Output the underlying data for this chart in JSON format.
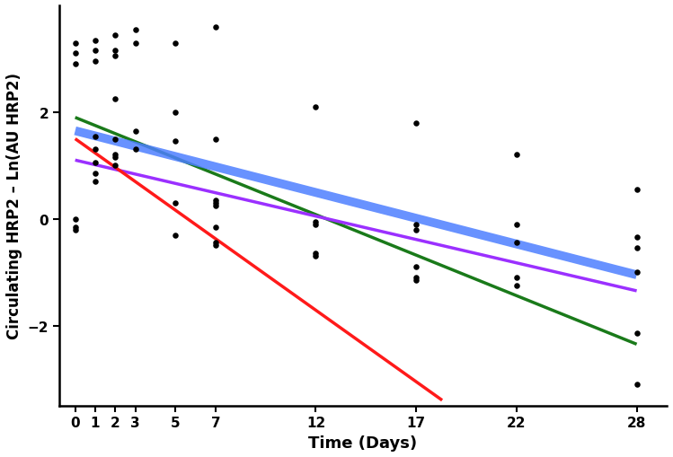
{
  "scatter_x": [
    0,
    0,
    0,
    1,
    1,
    1,
    1,
    1,
    2,
    2,
    2,
    2,
    2,
    3,
    3,
    5,
    5,
    5,
    5,
    7,
    7,
    7,
    7,
    7,
    7,
    7,
    12,
    12,
    12,
    12,
    12,
    17,
    17,
    17,
    17,
    17,
    17,
    22,
    22,
    22,
    22,
    22,
    28,
    28,
    28,
    28,
    28,
    28
  ],
  "scatter_y": [
    -0.15,
    0.0,
    -0.2,
    0.7,
    0.85,
    1.05,
    1.3,
    1.55,
    2.25,
    1.5,
    1.0,
    1.15,
    1.2,
    1.3,
    1.65,
    2.0,
    1.45,
    0.3,
    -0.3,
    1.5,
    0.35,
    0.3,
    0.25,
    -0.15,
    -0.5,
    -0.45,
    2.1,
    -0.05,
    -0.1,
    -0.65,
    -0.7,
    1.8,
    -0.1,
    -0.2,
    -0.9,
    -1.1,
    -1.15,
    1.2,
    -0.1,
    -0.45,
    -1.1,
    -1.25,
    0.55,
    -0.35,
    -0.55,
    -1.0,
    -2.15,
    -3.1
  ],
  "top_scatter_x": [
    0,
    0,
    0,
    1,
    1,
    1,
    2,
    2,
    2,
    3,
    3,
    5,
    7
  ],
  "top_scatter_y": [
    3.3,
    3.1,
    2.9,
    3.15,
    2.95,
    3.35,
    3.45,
    3.15,
    3.05,
    3.55,
    3.3,
    3.3,
    3.6
  ],
  "green_x": [
    0,
    28
  ],
  "green_y": [
    1.9,
    -2.35
  ],
  "blue_x": [
    0,
    28
  ],
  "blue_y": [
    1.65,
    -1.05
  ],
  "purple_x": [
    0,
    28
  ],
  "purple_y": [
    1.1,
    -1.35
  ],
  "red_x": [
    0,
    18.3
  ],
  "red_y": [
    1.5,
    -3.4
  ],
  "xlabel": "Time (Days)",
  "ylabel": "Circulating HRP2 – Ln(AU HRP2)",
  "xticks": [
    0,
    1,
    2,
    3,
    5,
    7,
    12,
    17,
    22,
    28
  ],
  "yticks": [
    -2,
    0,
    2
  ],
  "ylim": [
    -3.5,
    4.0
  ],
  "xlim": [
    -0.8,
    29.5
  ],
  "scatter_color": "#000000",
  "scatter_size": 22,
  "green_color": "#1a7a1a",
  "blue_color": "#4d7fff",
  "purple_color": "#9b30ff",
  "red_color": "#ff1a1a",
  "blue_linewidth": 7,
  "green_linewidth": 2.5,
  "purple_linewidth": 2.5,
  "red_linewidth": 2.5,
  "xlabel_fontsize": 13,
  "ylabel_fontsize": 12,
  "tick_fontsize": 11,
  "background_color": "#ffffff"
}
